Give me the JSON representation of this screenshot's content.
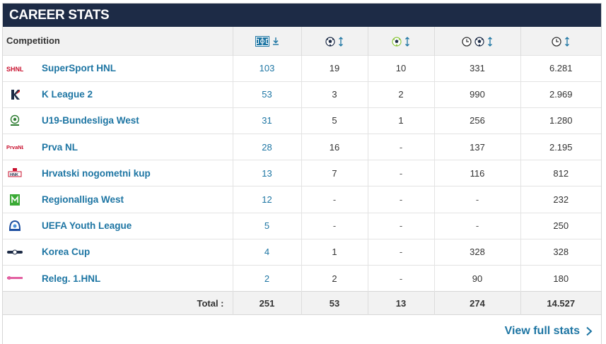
{
  "header": {
    "title": "CAREER STATS"
  },
  "table": {
    "col_competition": "Competition",
    "columns": [
      {
        "icon": "appearances-pitch-icon",
        "sort": "sort-desc-icon"
      },
      {
        "icon": "goals-ball-icon",
        "sort": "sort-icon"
      },
      {
        "icon": "assists-ball-icon",
        "sort": "sort-icon"
      },
      {
        "icon": "minutes-per-goal-icon",
        "sort": "sort-icon"
      },
      {
        "icon": "minutes-played-icon",
        "sort": "sort-icon"
      }
    ],
    "rows": [
      {
        "logo": "supersport-hnl-logo",
        "name": "SuperSport HNL",
        "apps": "103",
        "goals": "19",
        "assists": "10",
        "min_per_goal": "331",
        "minutes": "6.281"
      },
      {
        "logo": "k-league-2-logo",
        "name": "K League 2",
        "apps": "53",
        "goals": "3",
        "assists": "2",
        "min_per_goal": "990",
        "minutes": "2.969"
      },
      {
        "logo": "u19-bundesliga-logo",
        "name": "U19-Bundesliga West",
        "apps": "31",
        "goals": "5",
        "assists": "1",
        "min_per_goal": "256",
        "minutes": "1.280"
      },
      {
        "logo": "prva-nl-logo",
        "name": "Prva NL",
        "apps": "28",
        "goals": "16",
        "assists": "-",
        "min_per_goal": "137",
        "minutes": "2.195"
      },
      {
        "logo": "hrvatski-kup-logo",
        "name": "Hrvatski nogometni kup",
        "apps": "13",
        "goals": "7",
        "assists": "-",
        "min_per_goal": "116",
        "minutes": "812"
      },
      {
        "logo": "regionalliga-west-logo",
        "name": "Regionalliga West",
        "apps": "12",
        "goals": "-",
        "assists": "-",
        "min_per_goal": "-",
        "minutes": "232"
      },
      {
        "logo": "uefa-youth-league-logo",
        "name": "UEFA Youth League",
        "apps": "5",
        "goals": "-",
        "assists": "-",
        "min_per_goal": "-",
        "minutes": "250"
      },
      {
        "logo": "korea-cup-logo",
        "name": "Korea Cup",
        "apps": "4",
        "goals": "1",
        "assists": "-",
        "min_per_goal": "328",
        "minutes": "328"
      },
      {
        "logo": "releg-hnl-logo",
        "name": "Releg. 1.HNL",
        "apps": "2",
        "goals": "2",
        "assists": "-",
        "min_per_goal": "90",
        "minutes": "180"
      }
    ],
    "total": {
      "label": "Total :",
      "apps": "251",
      "goals": "53",
      "assists": "13",
      "min_per_goal": "274",
      "minutes": "14.527"
    }
  },
  "footer": {
    "link_label": "View full stats",
    "icon": "chevron-right-icon"
  },
  "colors": {
    "header_bg": "#1d2b46",
    "link": "#1d75a3",
    "row_alt": "#f2f2f2"
  }
}
